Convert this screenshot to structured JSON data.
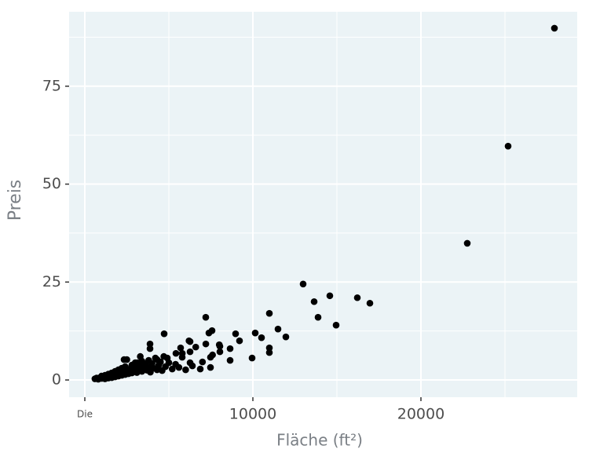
{
  "chart_data": {
    "type": "scatter",
    "xlabel": "Fläche (ft²)",
    "ylabel": "Preis",
    "color": "#000000",
    "grid": true,
    "background": "#ebf3f6",
    "xlim": [
      -935,
      29300
    ],
    "ylim": [
      -4.4,
      94
    ],
    "xticks": [
      {
        "value": 0,
        "label": "Die"
      },
      10000,
      20000
    ],
    "yticks": [
      0,
      25,
      50,
      75
    ],
    "x": [
      27944,
      25187,
      22757,
      12990,
      13645,
      14579,
      13879,
      14953,
      16215,
      16963,
      10981,
      11495,
      11963,
      10140,
      10514,
      10981,
      10981,
      9953,
      8972,
      9205,
      8645,
      8645,
      7196,
      7570,
      7383,
      8037,
      8037,
      7477,
      7477,
      6869,
      4720,
      3879,
      3879,
      6262,
      6262,
      5794,
      6262,
      5421,
      4907,
      4299,
      2336,
      3131,
      600,
      700,
      800,
      900,
      1000,
      1000,
      1100,
      1200,
      1200,
      1300,
      1400,
      1400,
      1500,
      1600,
      1600,
      1700,
      1800,
      1800,
      1900,
      2000,
      2000,
      2100,
      2200,
      2200,
      2300,
      2400,
      2400,
      2500,
      2500,
      2600,
      2700,
      2800,
      2800,
      2900,
      3000,
      3000,
      3100,
      3200,
      3300,
      3400,
      3400,
      3500,
      3600,
      3700,
      3800,
      3800,
      3900,
      4000,
      4100,
      4200,
      4300,
      4400,
      4500,
      4600,
      4700,
      4800,
      5000,
      5200,
      5400,
      5600,
      5800,
      6000,
      6400,
      6600,
      7000,
      7200,
      7600,
      8000,
      6200,
      5700,
      3300
    ],
    "values": [
      89.8,
      59.7,
      34.9,
      24.5,
      20.0,
      21.5,
      16.0,
      14.0,
      21.0,
      19.6,
      17.0,
      13.0,
      11.0,
      12.0,
      10.8,
      8.2,
      7.0,
      5.6,
      11.8,
      10.0,
      8.0,
      5.0,
      16.0,
      12.6,
      12.0,
      8.6,
      7.2,
      5.8,
      3.2,
      2.8,
      11.8,
      9.2,
      8.0,
      9.8,
      7.2,
      5.8,
      4.4,
      6.8,
      5.6,
      5.2,
      5.2,
      4.4,
      0.3,
      0.5,
      0.2,
      0.6,
      0.4,
      1.0,
      0.7,
      0.3,
      1.2,
      0.9,
      0.5,
      1.5,
      1.0,
      0.6,
      1.8,
      1.2,
      0.8,
      2.2,
      1.5,
      1.0,
      2.6,
      1.8,
      1.2,
      3.0,
      2.0,
      1.4,
      3.4,
      2.4,
      5.2,
      1.6,
      2.8,
      3.8,
      1.8,
      2.2,
      3.2,
      4.4,
      1.9,
      2.6,
      3.6,
      4.8,
      2.2,
      3.0,
      4.0,
      2.5,
      5.0,
      3.3,
      2.0,
      4.2,
      3.0,
      5.6,
      2.6,
      3.8,
      4.6,
      2.4,
      6.0,
      3.4,
      4.4,
      2.8,
      4.0,
      3.2,
      6.8,
      2.6,
      3.6,
      8.4,
      4.6,
      9.2,
      6.4,
      9.0,
      10.0,
      8.2,
      6.0
    ]
  }
}
